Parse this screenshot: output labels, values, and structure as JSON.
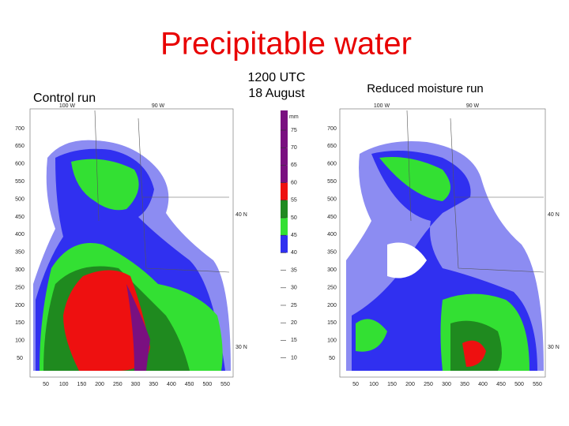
{
  "header": {
    "title": "Precipitable water"
  },
  "panels": {
    "left": "Control run",
    "center": [
      "1200 UTC",
      "18 August"
    ],
    "right": "Reduced moisture run"
  },
  "colorbar": {
    "unit": "mm",
    "levels": [
      75,
      70,
      65,
      60,
      55,
      50,
      45,
      40,
      35,
      30,
      25,
      20,
      15,
      10
    ],
    "colors": [
      "#7a1080",
      "#7a1080",
      "#7a1080",
      "#ee1010",
      "#1f8a1f",
      "#33e033",
      "#3030f0"
    ]
  },
  "maps": [
    {
      "yticks": [
        700,
        650,
        600,
        550,
        500,
        450,
        400,
        350,
        300,
        250,
        200,
        150,
        100,
        50
      ],
      "xticks": [
        50,
        100,
        150,
        200,
        250,
        300,
        350,
        400,
        450,
        500,
        550
      ],
      "top_labels": [
        "100 W",
        "90 W"
      ],
      "side_labels": [
        "40 N",
        "30 N"
      ]
    },
    {
      "yticks": [
        700,
        650,
        600,
        550,
        500,
        450,
        400,
        350,
        300,
        250,
        200,
        150,
        100,
        50
      ],
      "xticks": [
        50,
        100,
        150,
        200,
        250,
        300,
        350,
        400,
        450,
        500,
        550
      ],
      "top_labels": [
        "100 W",
        "90 W"
      ],
      "side_labels": [
        "40 N",
        "30 N"
      ]
    }
  ]
}
